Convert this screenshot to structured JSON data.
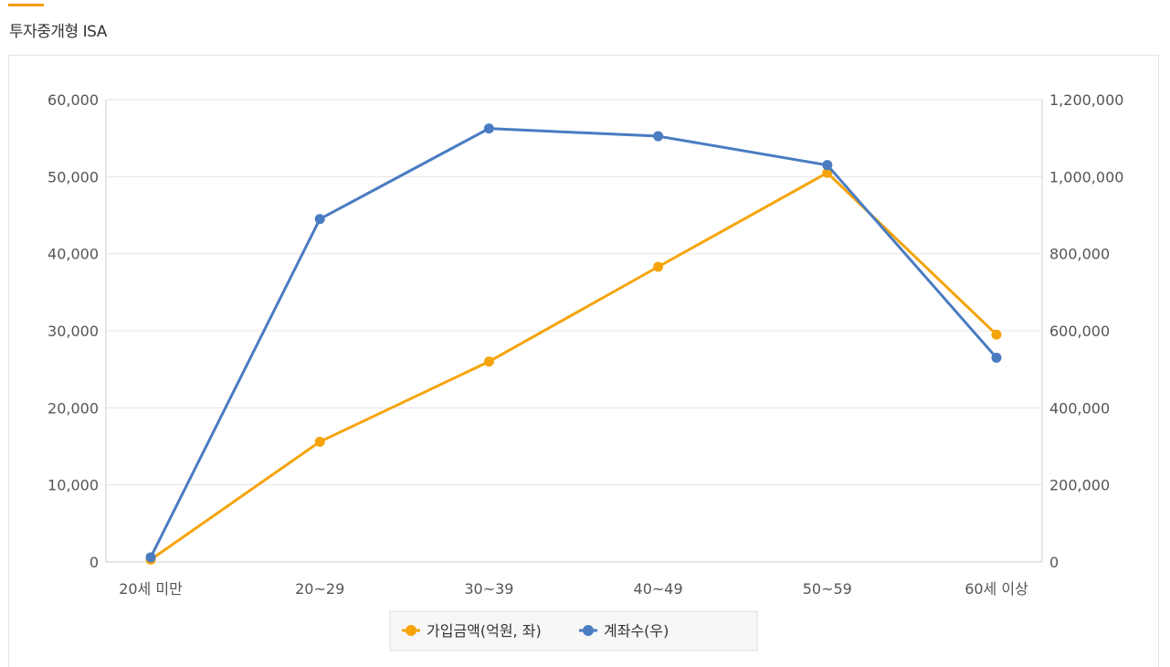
{
  "section": {
    "title": "투자중개형 ISA"
  },
  "colors": {
    "accent": "#f39c12",
    "series1": "#f5a40c",
    "series2": "#4a7cc1",
    "grid": "#e5e5e5",
    "text": "#555555"
  },
  "chart_data": {
    "type": "line",
    "title": "",
    "categories": [
      "20세 미만",
      "20~29",
      "30~39",
      "40~49",
      "50~59",
      "60세 이상"
    ],
    "y_left": {
      "min": 0,
      "max": 60000,
      "ticks": [
        "0",
        "10,000",
        "20,000",
        "30,000",
        "40,000",
        "50,000",
        "60,000"
      ]
    },
    "y_right": {
      "min": 0,
      "max": 1200000,
      "ticks": [
        "0",
        "200,000",
        "400,000",
        "600,000",
        "800,000",
        "1,000,000",
        "1,200,000"
      ]
    },
    "grid": true,
    "legend_position": "bottom-center",
    "series": [
      {
        "name": "가입금액(억원, 좌)",
        "axis": "left",
        "color": "#f5a40c",
        "values": [
          300,
          15600,
          26000,
          38300,
          50500,
          29500
        ]
      },
      {
        "name": "계좌수(우)",
        "axis": "right",
        "color": "#4a7cc1",
        "values": [
          12000,
          890000,
          1125000,
          1105000,
          1030000,
          530000
        ]
      }
    ]
  }
}
